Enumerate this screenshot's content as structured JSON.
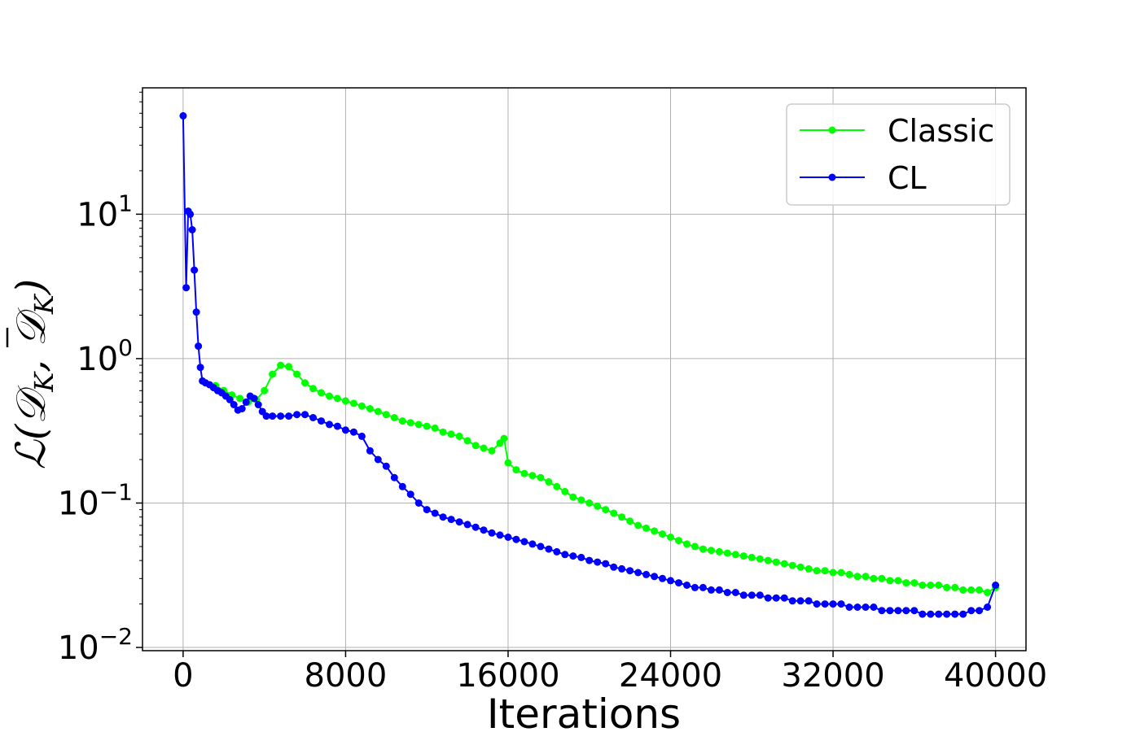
{
  "chart_data": {
    "type": "line",
    "xlabel": "Iterations",
    "ylabel": "ℒ(𝒟_K, 𝒟̄_K)",
    "ylabel_parts": {
      "script": "ℒ(",
      "d1": "𝒟",
      "sub1": "K",
      "comma": ", ",
      "d2": "𝒟",
      "sub2": "K",
      "close": ")"
    },
    "yscale": "log",
    "xlim": [
      -2000,
      41500
    ],
    "ylim": [
      0.0095,
      75
    ],
    "grid": true,
    "legend_position": "top-right",
    "x_ticks": [
      {
        "value": 0,
        "label": "0"
      },
      {
        "value": 8000,
        "label": "8000"
      },
      {
        "value": 16000,
        "label": "16000"
      },
      {
        "value": 24000,
        "label": "24000"
      },
      {
        "value": 32000,
        "label": "32000"
      },
      {
        "value": 40000,
        "label": "40000"
      }
    ],
    "y_ticks": [
      {
        "value": 0.01,
        "base": "10",
        "exp": "−2"
      },
      {
        "value": 0.1,
        "base": "10",
        "exp": "−1"
      },
      {
        "value": 1,
        "base": "10",
        "exp": "0"
      },
      {
        "value": 10,
        "base": "10",
        "exp": "1"
      }
    ],
    "series": [
      {
        "name": "Classic",
        "color": "#00ff00",
        "points": [
          [
            1600,
            0.65
          ],
          [
            2000,
            0.6
          ],
          [
            2400,
            0.56
          ],
          [
            2800,
            0.53
          ],
          [
            3200,
            0.5
          ],
          [
            3600,
            0.52
          ],
          [
            4000,
            0.6
          ],
          [
            4400,
            0.78
          ],
          [
            4800,
            0.9
          ],
          [
            5200,
            0.88
          ],
          [
            5600,
            0.78
          ],
          [
            6000,
            0.68
          ],
          [
            6400,
            0.62
          ],
          [
            6800,
            0.58
          ],
          [
            7200,
            0.55
          ],
          [
            7600,
            0.53
          ],
          [
            8000,
            0.51
          ],
          [
            8400,
            0.49
          ],
          [
            8800,
            0.47
          ],
          [
            9200,
            0.45
          ],
          [
            9600,
            0.43
          ],
          [
            10000,
            0.41
          ],
          [
            10400,
            0.39
          ],
          [
            10800,
            0.37
          ],
          [
            11200,
            0.36
          ],
          [
            11600,
            0.35
          ],
          [
            12000,
            0.34
          ],
          [
            12400,
            0.33
          ],
          [
            12800,
            0.31
          ],
          [
            13200,
            0.3
          ],
          [
            13600,
            0.29
          ],
          [
            14000,
            0.27
          ],
          [
            14400,
            0.25
          ],
          [
            14800,
            0.24
          ],
          [
            15200,
            0.23
          ],
          [
            15600,
            0.26
          ],
          [
            15800,
            0.28
          ],
          [
            16000,
            0.19
          ],
          [
            16400,
            0.17
          ],
          [
            16800,
            0.16
          ],
          [
            17200,
            0.155
          ],
          [
            17600,
            0.15
          ],
          [
            18000,
            0.14
          ],
          [
            18400,
            0.13
          ],
          [
            18800,
            0.12
          ],
          [
            19200,
            0.11
          ],
          [
            19600,
            0.105
          ],
          [
            20000,
            0.1
          ],
          [
            20400,
            0.095
          ],
          [
            20800,
            0.09
          ],
          [
            21200,
            0.085
          ],
          [
            21600,
            0.08
          ],
          [
            22000,
            0.075
          ],
          [
            22400,
            0.07
          ],
          [
            22800,
            0.067
          ],
          [
            23200,
            0.064
          ],
          [
            23600,
            0.061
          ],
          [
            24000,
            0.058
          ],
          [
            24400,
            0.055
          ],
          [
            24800,
            0.052
          ],
          [
            25200,
            0.05
          ],
          [
            25600,
            0.048
          ],
          [
            26000,
            0.047
          ],
          [
            26400,
            0.046
          ],
          [
            26800,
            0.045
          ],
          [
            27200,
            0.044
          ],
          [
            27600,
            0.043
          ],
          [
            28000,
            0.042
          ],
          [
            28400,
            0.041
          ],
          [
            28800,
            0.04
          ],
          [
            29200,
            0.039
          ],
          [
            29600,
            0.038
          ],
          [
            30000,
            0.037
          ],
          [
            30400,
            0.036
          ],
          [
            30800,
            0.035
          ],
          [
            31200,
            0.034
          ],
          [
            31600,
            0.034
          ],
          [
            32000,
            0.033
          ],
          [
            32400,
            0.033
          ],
          [
            32800,
            0.032
          ],
          [
            33200,
            0.031
          ],
          [
            33600,
            0.031
          ],
          [
            34000,
            0.03
          ],
          [
            34400,
            0.03
          ],
          [
            34800,
            0.029
          ],
          [
            35200,
            0.029
          ],
          [
            35600,
            0.028
          ],
          [
            36000,
            0.028
          ],
          [
            36400,
            0.027
          ],
          [
            36800,
            0.027
          ],
          [
            37200,
            0.027
          ],
          [
            37600,
            0.026
          ],
          [
            38000,
            0.026
          ],
          [
            38400,
            0.025
          ],
          [
            38800,
            0.025
          ],
          [
            39200,
            0.025
          ],
          [
            39600,
            0.024
          ],
          [
            40000,
            0.026
          ]
        ]
      },
      {
        "name": "CL",
        "color": "#0000ff",
        "points": [
          [
            0,
            48
          ],
          [
            150,
            3.1
          ],
          [
            250,
            10.5
          ],
          [
            350,
            10
          ],
          [
            450,
            7.8
          ],
          [
            550,
            4.1
          ],
          [
            650,
            2.1
          ],
          [
            750,
            1.22
          ],
          [
            850,
            0.87
          ],
          [
            950,
            0.7
          ],
          [
            1100,
            0.68
          ],
          [
            1300,
            0.66
          ],
          [
            1500,
            0.63
          ],
          [
            1700,
            0.6
          ],
          [
            1900,
            0.58
          ],
          [
            2100,
            0.55
          ],
          [
            2300,
            0.52
          ],
          [
            2500,
            0.48
          ],
          [
            2700,
            0.44
          ],
          [
            2900,
            0.45
          ],
          [
            3100,
            0.5
          ],
          [
            3300,
            0.55
          ],
          [
            3500,
            0.53
          ],
          [
            3700,
            0.48
          ],
          [
            3900,
            0.43
          ],
          [
            4100,
            0.4
          ],
          [
            4400,
            0.4
          ],
          [
            4800,
            0.4
          ],
          [
            5200,
            0.4
          ],
          [
            5600,
            0.41
          ],
          [
            6000,
            0.41
          ],
          [
            6400,
            0.39
          ],
          [
            6800,
            0.37
          ],
          [
            7200,
            0.35
          ],
          [
            7600,
            0.34
          ],
          [
            8000,
            0.32
          ],
          [
            8400,
            0.31
          ],
          [
            8800,
            0.29
          ],
          [
            9200,
            0.23
          ],
          [
            9600,
            0.2
          ],
          [
            10000,
            0.18
          ],
          [
            10400,
            0.15
          ],
          [
            10800,
            0.13
          ],
          [
            11200,
            0.115
          ],
          [
            11600,
            0.1
          ],
          [
            12000,
            0.09
          ],
          [
            12400,
            0.085
          ],
          [
            12800,
            0.08
          ],
          [
            13200,
            0.077
          ],
          [
            13600,
            0.074
          ],
          [
            14000,
            0.071
          ],
          [
            14400,
            0.068
          ],
          [
            14800,
            0.065
          ],
          [
            15200,
            0.062
          ],
          [
            15600,
            0.06
          ],
          [
            16000,
            0.058
          ],
          [
            16400,
            0.056
          ],
          [
            16800,
            0.054
          ],
          [
            17200,
            0.052
          ],
          [
            17600,
            0.05
          ],
          [
            18000,
            0.048
          ],
          [
            18400,
            0.046
          ],
          [
            18800,
            0.044
          ],
          [
            19200,
            0.043
          ],
          [
            19600,
            0.042
          ],
          [
            20000,
            0.04
          ],
          [
            20400,
            0.039
          ],
          [
            20800,
            0.038
          ],
          [
            21200,
            0.036
          ],
          [
            21600,
            0.035
          ],
          [
            22000,
            0.034
          ],
          [
            22400,
            0.033
          ],
          [
            22800,
            0.032
          ],
          [
            23200,
            0.031
          ],
          [
            23600,
            0.03
          ],
          [
            24000,
            0.029
          ],
          [
            24400,
            0.028
          ],
          [
            24800,
            0.027
          ],
          [
            25200,
            0.026
          ],
          [
            25600,
            0.026
          ],
          [
            26000,
            0.025
          ],
          [
            26400,
            0.025
          ],
          [
            26800,
            0.024
          ],
          [
            27200,
            0.024
          ],
          [
            27600,
            0.023
          ],
          [
            28000,
            0.023
          ],
          [
            28400,
            0.023
          ],
          [
            28800,
            0.022
          ],
          [
            29200,
            0.022
          ],
          [
            29600,
            0.022
          ],
          [
            30000,
            0.021
          ],
          [
            30400,
            0.021
          ],
          [
            30800,
            0.021
          ],
          [
            31200,
            0.02
          ],
          [
            31600,
            0.02
          ],
          [
            32000,
            0.02
          ],
          [
            32400,
            0.02
          ],
          [
            32800,
            0.019
          ],
          [
            33200,
            0.019
          ],
          [
            33600,
            0.019
          ],
          [
            34000,
            0.019
          ],
          [
            34400,
            0.018
          ],
          [
            34800,
            0.018
          ],
          [
            35200,
            0.018
          ],
          [
            35600,
            0.018
          ],
          [
            36000,
            0.018
          ],
          [
            36400,
            0.017
          ],
          [
            36800,
            0.017
          ],
          [
            37200,
            0.017
          ],
          [
            37600,
            0.017
          ],
          [
            38000,
            0.017
          ],
          [
            38400,
            0.017
          ],
          [
            38800,
            0.018
          ],
          [
            39200,
            0.018
          ],
          [
            39600,
            0.019
          ],
          [
            40000,
            0.027
          ]
        ]
      }
    ]
  }
}
